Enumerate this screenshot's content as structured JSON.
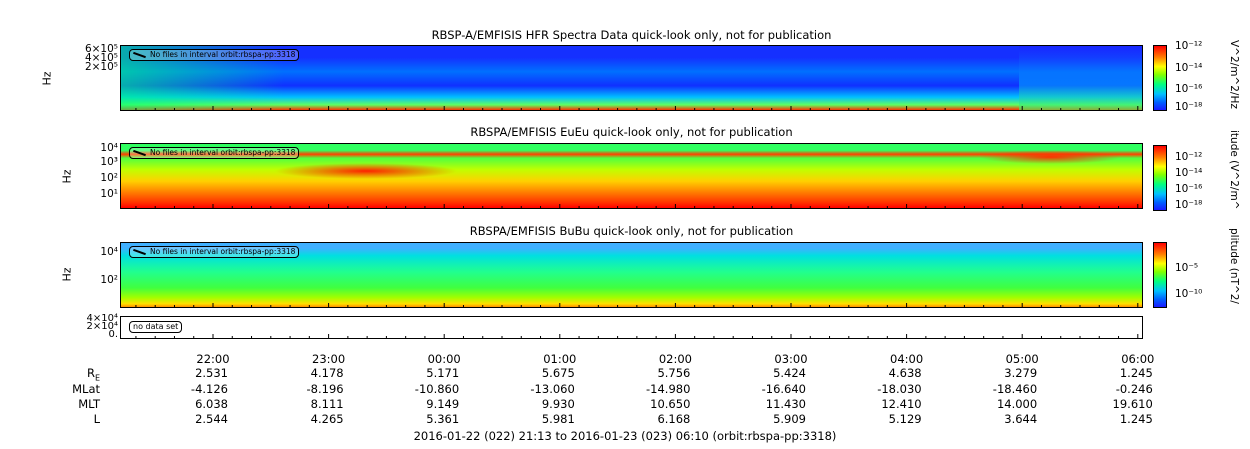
{
  "chart_data": [
    {
      "type": "heatmap",
      "title": "RBSP-A/EMFISIS  HFR Spectra Data quick-look only, not for publication",
      "ylabel": "Hz",
      "y_ticks": [
        "6×10⁵",
        "4×10⁵",
        "2×10⁵"
      ],
      "colorbar_label": "V^2/m^2/Hz",
      "colorbar_ticks": [
        "10⁻¹²",
        "10⁻¹⁴",
        "10⁻¹⁶",
        "10⁻¹⁸"
      ],
      "note": "No files in interval orbit:rbspa-pp:3318"
    },
    {
      "type": "heatmap",
      "title": "RBSPA/EMFISIS  EuEu quick-look only, not for publication",
      "ylabel": "Hz",
      "y_ticks": [
        "10⁴",
        "10³",
        "10²",
        "10¹"
      ],
      "colorbar_label": "itude (V^2/m^",
      "colorbar_ticks": [
        "10⁻¹²",
        "10⁻¹⁴",
        "10⁻¹⁶",
        "10⁻¹⁸"
      ],
      "note": "No files in interval orbit:rbspa-pp:3318"
    },
    {
      "type": "heatmap",
      "title": "RBSPA/EMFISIS  BuBu quick-look only, not for publication",
      "ylabel": "Hz",
      "y_ticks": [
        "10⁴",
        "10²"
      ],
      "colorbar_label": "plitude (nT^2/",
      "colorbar_ticks": [
        "10⁻⁵",
        "10⁻¹⁰"
      ],
      "note": "No files in interval orbit:rbspa-pp:3318"
    },
    {
      "type": "line",
      "y_ticks": [
        "4×10⁴",
        "2×10⁴",
        "0."
      ],
      "note": "no data set"
    }
  ],
  "x_axis": {
    "ticks": [
      "22:00",
      "23:00",
      "00:00",
      "01:00",
      "02:00",
      "03:00",
      "04:00",
      "05:00",
      "06:00"
    ]
  },
  "ephemeris": [
    {
      "label": "R",
      "label_sub": "E",
      "values": [
        "2.531",
        "4.178",
        "5.171",
        "5.675",
        "5.756",
        "5.424",
        "4.638",
        "3.279",
        "1.245"
      ]
    },
    {
      "label": "MLat",
      "values": [
        "-4.126",
        "-8.196",
        "-10.860",
        "-13.060",
        "-14.980",
        "-16.640",
        "-18.030",
        "-18.460",
        "-0.246"
      ]
    },
    {
      "label": "MLT",
      "values": [
        "6.038",
        "8.111",
        "9.149",
        "9.930",
        "10.650",
        "11.430",
        "12.410",
        "14.000",
        "19.610"
      ]
    },
    {
      "label": "L",
      "values": [
        "2.544",
        "4.265",
        "5.361",
        "5.981",
        "6.168",
        "5.909",
        "5.129",
        "3.644",
        "1.245"
      ]
    }
  ],
  "footer": "2016-01-22 (022) 21:13 to 2016-01-23 (023) 06:10 (orbit:rbspa-pp:3318)"
}
